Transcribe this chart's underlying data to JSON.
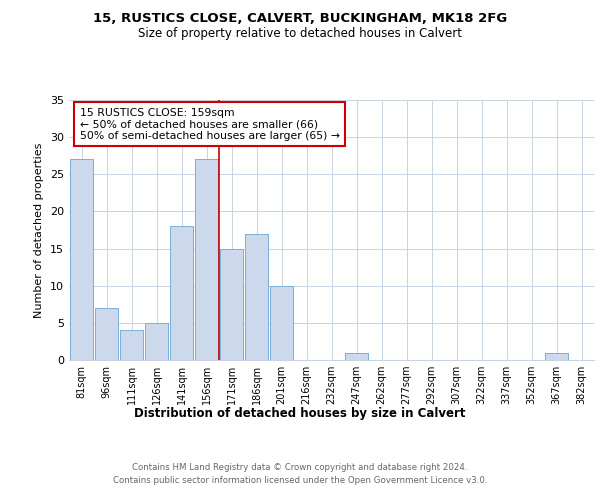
{
  "title_line1": "15, RUSTICS CLOSE, CALVERT, BUCKINGHAM, MK18 2FG",
  "title_line2": "Size of property relative to detached houses in Calvert",
  "xlabel": "Distribution of detached houses by size in Calvert",
  "ylabel": "Number of detached properties",
  "categories": [
    "81sqm",
    "96sqm",
    "111sqm",
    "126sqm",
    "141sqm",
    "156sqm",
    "171sqm",
    "186sqm",
    "201sqm",
    "216sqm",
    "232sqm",
    "247sqm",
    "262sqm",
    "277sqm",
    "292sqm",
    "307sqm",
    "322sqm",
    "337sqm",
    "352sqm",
    "367sqm",
    "382sqm"
  ],
  "values": [
    27,
    7,
    4,
    5,
    18,
    27,
    15,
    17,
    10,
    0,
    0,
    1,
    0,
    0,
    0,
    0,
    0,
    0,
    0,
    1,
    0
  ],
  "bar_color": "#ccd9ec",
  "bar_edge_color": "#7bafd4",
  "marker_index": 6,
  "marker_color": "#cc0000",
  "ylim": [
    0,
    35
  ],
  "yticks": [
    0,
    5,
    10,
    15,
    20,
    25,
    30,
    35
  ],
  "annotation_text": "15 RUSTICS CLOSE: 159sqm\n← 50% of detached houses are smaller (66)\n50% of semi-detached houses are larger (65) →",
  "annotation_box_color": "#ffffff",
  "annotation_border_color": "#cc0000",
  "footer_line1": "Contains HM Land Registry data © Crown copyright and database right 2024.",
  "footer_line2": "Contains public sector information licensed under the Open Government Licence v3.0.",
  "background_color": "#ffffff",
  "grid_color": "#c8d4e0"
}
